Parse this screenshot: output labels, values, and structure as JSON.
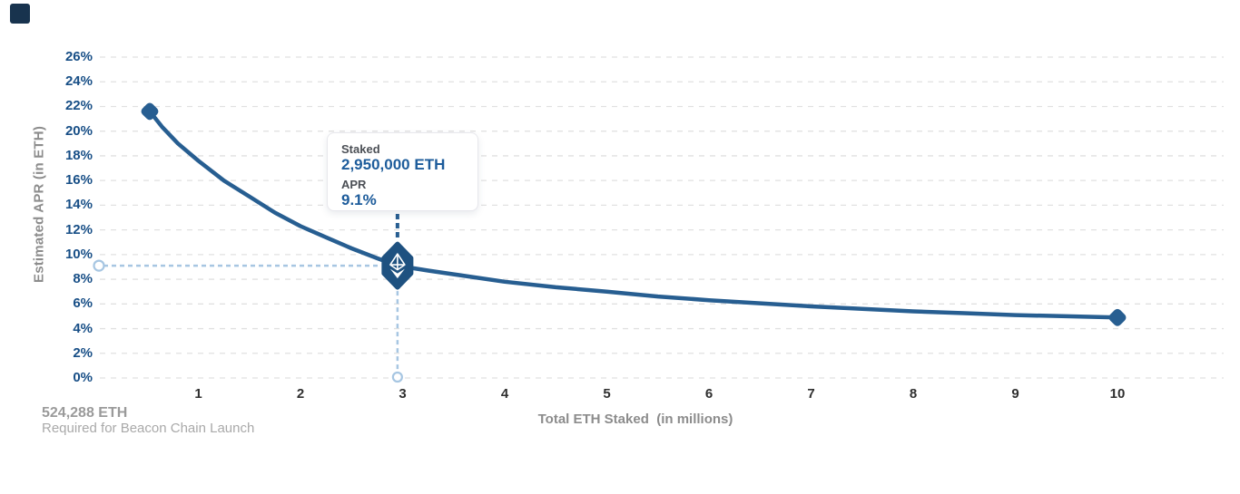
{
  "accent": {
    "line_blue": "#275E91",
    "marker_blue": "#1E5180",
    "tick_blue": "#174E86",
    "value_blue": "#1D5C9B",
    "guide_light_blue": "#A7C6E2",
    "grid_gray": "#E1E1E1",
    "logo_navy": "#18334E"
  },
  "tooltip": {
    "staked_label": "Staked",
    "staked_value": "2,950,000 ETH",
    "apr_label": "APR",
    "apr_value": "9.1%"
  },
  "footnote": {
    "line1": "524,288 ETH",
    "line2": "Required for Beacon Chain Launch"
  },
  "chart_data": {
    "type": "line",
    "title": "",
    "xlabel": "Total ETH Staked  (in millions)",
    "ylabel": "Estimated APR (in ETH)",
    "xlim": [
      0,
      10.9
    ],
    "ylim": [
      0,
      26
    ],
    "grid": "horizontal-dashed",
    "legend": "none",
    "x_ticks": [
      1,
      2,
      3,
      4,
      5,
      6,
      7,
      8,
      9,
      10
    ],
    "y_ticks": [
      26,
      24,
      22,
      20,
      18,
      16,
      14,
      12,
      10,
      8,
      6,
      4,
      2,
      0
    ],
    "y_tick_labels": [
      "26%",
      "24%",
      "22%",
      "20%",
      "18%",
      "16%",
      "14%",
      "12%",
      "10%",
      "8%",
      "6%",
      "4%",
      "2%",
      "0%"
    ],
    "series": [
      {
        "name": "Estimated APR",
        "points": [
          [
            0.524288,
            21.6
          ],
          [
            0.65,
            20.3
          ],
          [
            0.8,
            19.0
          ],
          [
            1,
            17.6
          ],
          [
            1.25,
            16.0
          ],
          [
            1.5,
            14.7
          ],
          [
            1.75,
            13.4
          ],
          [
            2,
            12.3
          ],
          [
            2.25,
            11.4
          ],
          [
            2.5,
            10.5
          ],
          [
            2.75,
            9.7
          ],
          [
            2.95,
            9.1
          ],
          [
            3.25,
            8.7
          ],
          [
            3.5,
            8.4
          ],
          [
            4,
            7.8
          ],
          [
            4.5,
            7.35
          ],
          [
            5,
            7.0
          ],
          [
            5.5,
            6.6
          ],
          [
            6,
            6.3
          ],
          [
            6.5,
            6.05
          ],
          [
            7,
            5.8
          ],
          [
            7.5,
            5.6
          ],
          [
            8,
            5.4
          ],
          [
            8.5,
            5.25
          ],
          [
            9,
            5.1
          ],
          [
            9.5,
            5.0
          ],
          [
            10,
            4.9
          ]
        ]
      }
    ],
    "highlight_point": {
      "x": 2.95,
      "apr": 9.1
    },
    "endpoint_values": [
      [
        0.524288,
        21.6
      ],
      [
        10,
        4.9
      ]
    ]
  }
}
